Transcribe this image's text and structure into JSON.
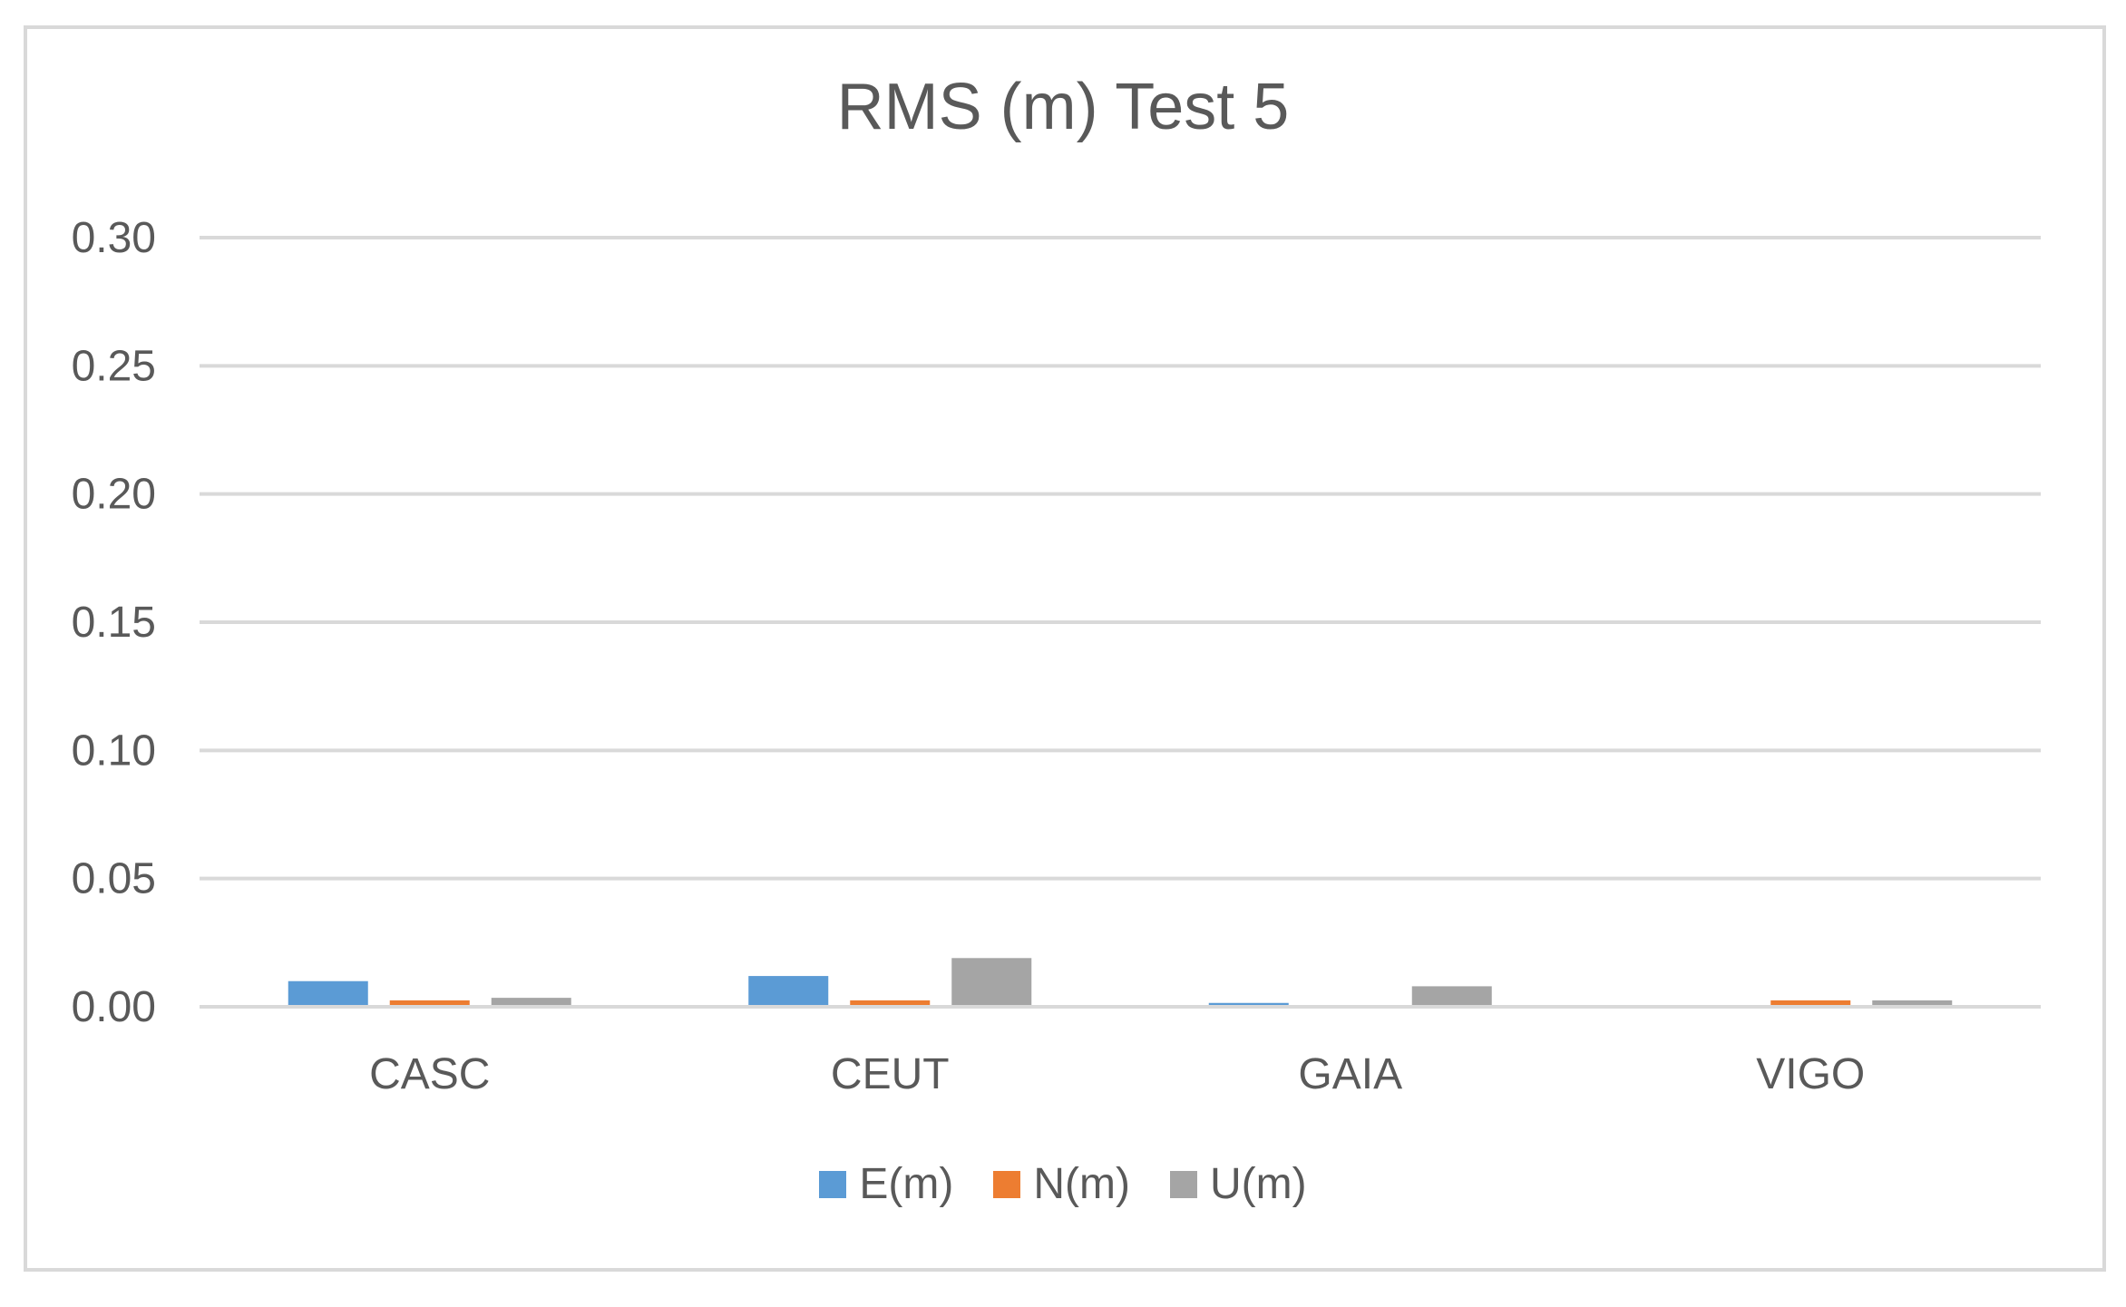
{
  "chart_data": {
    "type": "bar",
    "title": "RMS (m) Test 5",
    "xlabel": "",
    "ylabel": "",
    "categories": [
      "CASC",
      "CEUT",
      "GAIA",
      "VIGO"
    ],
    "series": [
      {
        "name": "E(m)",
        "color": "#5b9bd5",
        "values": [
          0.01,
          0.012,
          0.0015,
          0.0
        ]
      },
      {
        "name": "N(m)",
        "color": "#ed7d31",
        "values": [
          0.0025,
          0.0025,
          0.0,
          0.0025
        ]
      },
      {
        "name": "U(m)",
        "color": "#a5a5a5",
        "values": [
          0.0035,
          0.019,
          0.008,
          0.0025
        ]
      }
    ],
    "ylim": [
      0,
      0.3
    ],
    "yticks": [
      "0.00",
      "0.05",
      "0.10",
      "0.15",
      "0.20",
      "0.25",
      "0.30"
    ],
    "grid": true,
    "legend_position": "bottom"
  }
}
